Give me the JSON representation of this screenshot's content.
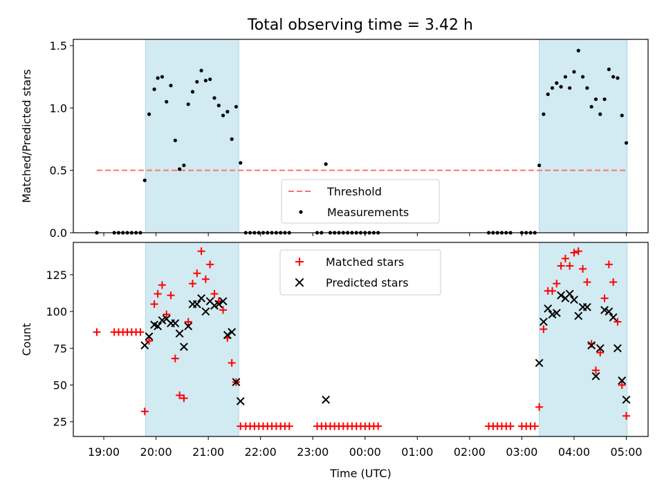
{
  "title": "Total observing time = 3.42 h",
  "colors": {
    "band": "#add8e6",
    "threshold": "#ff6f6f",
    "matched": "#ff0000",
    "predicted": "#000000",
    "measurement": "#000000"
  },
  "chart_data": [
    {
      "type": "scatter",
      "panel": "top",
      "xlabel": "",
      "ylabel": "Matched/Predicted stars",
      "ylim": [
        0,
        1.55
      ],
      "yticks": [
        0.0,
        0.5,
        1.0,
        1.5
      ],
      "ytick_labels": [
        "0.0",
        "0.5",
        "1.0",
        "1.5"
      ],
      "xticks": [
        "19:00",
        "20:00",
        "21:00",
        "22:00",
        "23:00",
        "00:00",
        "01:00",
        "02:00",
        "03:00",
        "04:00",
        "05:00"
      ],
      "show_xtick_labels": false,
      "shaded_regions": [
        [
          "19:48",
          "21:35"
        ],
        [
          "03:20",
          "05:01"
        ]
      ],
      "threshold": {
        "name": "Threshold",
        "value": 0.5,
        "x_range": [
          "18:52",
          "05:01"
        ]
      },
      "legend": {
        "placement": "lower-center",
        "entries": [
          "Threshold",
          "Measurements"
        ]
      },
      "series": [
        {
          "name": "Measurements",
          "marker": "dot",
          "points": [
            [
              "18:52",
              0.0
            ],
            [
              "19:12",
              0.0
            ],
            [
              "19:17",
              0.0
            ],
            [
              "19:22",
              0.0
            ],
            [
              "19:27",
              0.0
            ],
            [
              "19:32",
              0.0
            ],
            [
              "19:37",
              0.0
            ],
            [
              "19:42",
              0.0
            ],
            [
              "19:47",
              0.42
            ],
            [
              "19:52",
              0.95
            ],
            [
              "19:58",
              1.15
            ],
            [
              "20:02",
              1.24
            ],
            [
              "20:07",
              1.25
            ],
            [
              "20:12",
              1.05
            ],
            [
              "20:17",
              1.18
            ],
            [
              "20:22",
              0.74
            ],
            [
              "20:27",
              0.51
            ],
            [
              "20:32",
              0.54
            ],
            [
              "20:37",
              1.03
            ],
            [
              "20:42",
              1.13
            ],
            [
              "20:47",
              1.21
            ],
            [
              "20:52",
              1.3
            ],
            [
              "20:57",
              1.22
            ],
            [
              "21:02",
              1.23
            ],
            [
              "21:07",
              1.08
            ],
            [
              "21:12",
              1.02
            ],
            [
              "21:17",
              0.94
            ],
            [
              "21:22",
              0.97
            ],
            [
              "21:27",
              0.75
            ],
            [
              "21:32",
              1.01
            ],
            [
              "21:37",
              0.56
            ],
            [
              "21:43",
              0.0
            ],
            [
              "21:48",
              0.0
            ],
            [
              "21:53",
              0.0
            ],
            [
              "21:58",
              0.0
            ],
            [
              "22:03",
              0.0
            ],
            [
              "22:08",
              0.0
            ],
            [
              "22:13",
              0.0
            ],
            [
              "22:18",
              0.0
            ],
            [
              "22:23",
              0.0
            ],
            [
              "22:28",
              0.0
            ],
            [
              "22:33",
              0.0
            ],
            [
              "23:05",
              0.0
            ],
            [
              "23:10",
              0.0
            ],
            [
              "23:15",
              0.55
            ],
            [
              "23:20",
              0.0
            ],
            [
              "23:25",
              0.0
            ],
            [
              "23:30",
              0.0
            ],
            [
              "23:35",
              0.0
            ],
            [
              "23:40",
              0.0
            ],
            [
              "23:45",
              0.0
            ],
            [
              "23:50",
              0.0
            ],
            [
              "23:55",
              0.0
            ],
            [
              "00:00",
              0.0
            ],
            [
              "00:05",
              0.0
            ],
            [
              "00:10",
              0.0
            ],
            [
              "00:15",
              0.0
            ],
            [
              "02:22",
              0.0
            ],
            [
              "02:27",
              0.0
            ],
            [
              "02:32",
              0.0
            ],
            [
              "02:37",
              0.0
            ],
            [
              "02:42",
              0.0
            ],
            [
              "02:47",
              0.0
            ],
            [
              "03:00",
              0.0
            ],
            [
              "03:05",
              0.0
            ],
            [
              "03:10",
              0.0
            ],
            [
              "03:15",
              0.0
            ],
            [
              "03:20",
              0.54
            ],
            [
              "03:25",
              0.95
            ],
            [
              "03:30",
              1.11
            ],
            [
              "03:35",
              1.16
            ],
            [
              "03:40",
              1.2
            ],
            [
              "03:45",
              1.17
            ],
            [
              "03:50",
              1.25
            ],
            [
              "03:55",
              1.16
            ],
            [
              "04:00",
              1.29
            ],
            [
              "04:05",
              1.46
            ],
            [
              "04:10",
              1.25
            ],
            [
              "04:15",
              1.16
            ],
            [
              "04:20",
              1.01
            ],
            [
              "04:25",
              1.07
            ],
            [
              "04:30",
              0.95
            ],
            [
              "04:35",
              1.07
            ],
            [
              "04:40",
              1.31
            ],
            [
              "04:45",
              1.25
            ],
            [
              "04:50",
              1.24
            ],
            [
              "04:55",
              0.94
            ],
            [
              "05:00",
              0.72
            ]
          ]
        }
      ]
    },
    {
      "type": "scatter",
      "panel": "bottom",
      "xlabel": "Time (UTC)",
      "ylabel": "Count",
      "ylim": [
        15,
        147
      ],
      "yticks": [
        25,
        50,
        75,
        100,
        125
      ],
      "ytick_labels": [
        "25",
        "50",
        "75",
        "100",
        "125"
      ],
      "xticks": [
        "19:00",
        "20:00",
        "21:00",
        "22:00",
        "23:00",
        "00:00",
        "01:00",
        "02:00",
        "03:00",
        "04:00",
        "05:00"
      ],
      "show_xtick_labels": true,
      "shaded_regions": [
        [
          "19:48",
          "21:35"
        ],
        [
          "03:20",
          "05:01"
        ]
      ],
      "legend": {
        "placement": "top-center",
        "entries": [
          "Matched stars",
          "Predicted stars"
        ]
      },
      "series": [
        {
          "name": "Matched stars",
          "marker": "plus",
          "points": [
            [
              "18:52",
              86
            ],
            [
              "19:12",
              86
            ],
            [
              "19:17",
              86
            ],
            [
              "19:22",
              86
            ],
            [
              "19:27",
              86
            ],
            [
              "19:32",
              86
            ],
            [
              "19:37",
              86
            ],
            [
              "19:42",
              86
            ],
            [
              "19:47",
              32
            ],
            [
              "19:52",
              80
            ],
            [
              "19:58",
              105
            ],
            [
              "20:02",
              112
            ],
            [
              "20:07",
              118
            ],
            [
              "20:12",
              98
            ],
            [
              "20:17",
              111
            ],
            [
              "20:22",
              68
            ],
            [
              "20:27",
              43
            ],
            [
              "20:32",
              41
            ],
            [
              "20:37",
              93
            ],
            [
              "20:42",
              119
            ],
            [
              "20:47",
              126
            ],
            [
              "20:52",
              141
            ],
            [
              "20:57",
              122
            ],
            [
              "21:02",
              132
            ],
            [
              "21:07",
              112
            ],
            [
              "21:12",
              107
            ],
            [
              "21:17",
              101
            ],
            [
              "21:22",
              82
            ],
            [
              "21:27",
              65
            ],
            [
              "21:32",
              52
            ],
            [
              "21:37",
              22
            ],
            [
              "21:43",
              22
            ],
            [
              "21:48",
              22
            ],
            [
              "21:53",
              22
            ],
            [
              "21:58",
              22
            ],
            [
              "22:03",
              22
            ],
            [
              "22:08",
              22
            ],
            [
              "22:13",
              22
            ],
            [
              "22:18",
              22
            ],
            [
              "22:23",
              22
            ],
            [
              "22:28",
              22
            ],
            [
              "22:33",
              22
            ],
            [
              "23:05",
              22
            ],
            [
              "23:10",
              22
            ],
            [
              "23:15",
              22
            ],
            [
              "23:20",
              22
            ],
            [
              "23:25",
              22
            ],
            [
              "23:30",
              22
            ],
            [
              "23:35",
              22
            ],
            [
              "23:40",
              22
            ],
            [
              "23:45",
              22
            ],
            [
              "23:50",
              22
            ],
            [
              "23:55",
              22
            ],
            [
              "00:00",
              22
            ],
            [
              "00:05",
              22
            ],
            [
              "00:10",
              22
            ],
            [
              "00:15",
              22
            ],
            [
              "02:22",
              22
            ],
            [
              "02:27",
              22
            ],
            [
              "02:32",
              22
            ],
            [
              "02:37",
              22
            ],
            [
              "02:42",
              22
            ],
            [
              "02:47",
              22
            ],
            [
              "03:00",
              22
            ],
            [
              "03:05",
              22
            ],
            [
              "03:10",
              22
            ],
            [
              "03:15",
              22
            ],
            [
              "03:20",
              35
            ],
            [
              "03:25",
              88
            ],
            [
              "03:30",
              114
            ],
            [
              "03:35",
              114
            ],
            [
              "03:40",
              119
            ],
            [
              "03:45",
              131
            ],
            [
              "03:50",
              136
            ],
            [
              "03:55",
              131
            ],
            [
              "04:00",
              140
            ],
            [
              "04:05",
              141
            ],
            [
              "04:10",
              129
            ],
            [
              "04:15",
              120
            ],
            [
              "04:20",
              78
            ],
            [
              "04:25",
              60
            ],
            [
              "04:30",
              72
            ],
            [
              "04:35",
              109
            ],
            [
              "04:40",
              132
            ],
            [
              "04:45",
              120
            ],
            [
              "04:50",
              93
            ],
            [
              "04:55",
              50
            ],
            [
              "05:00",
              29
            ]
          ]
        },
        {
          "name": "Predicted stars",
          "marker": "x",
          "points": [
            [
              "19:47",
              77
            ],
            [
              "19:52",
              83
            ],
            [
              "19:58",
              91
            ],
            [
              "20:02",
              90
            ],
            [
              "20:07",
              94
            ],
            [
              "20:12",
              95
            ],
            [
              "20:17",
              92
            ],
            [
              "20:22",
              92
            ],
            [
              "20:27",
              85
            ],
            [
              "20:32",
              76
            ],
            [
              "20:37",
              90
            ],
            [
              "20:42",
              105
            ],
            [
              "20:47",
              105
            ],
            [
              "20:52",
              109
            ],
            [
              "20:57",
              100
            ],
            [
              "21:02",
              107
            ],
            [
              "21:07",
              104
            ],
            [
              "21:12",
              105
            ],
            [
              "21:17",
              107
            ],
            [
              "21:22",
              84
            ],
            [
              "21:27",
              86
            ],
            [
              "21:32",
              52
            ],
            [
              "21:37",
              39
            ],
            [
              "23:15",
              40
            ],
            [
              "03:20",
              65
            ],
            [
              "03:25",
              93
            ],
            [
              "03:30",
              102
            ],
            [
              "03:35",
              98
            ],
            [
              "03:40",
              99
            ],
            [
              "03:45",
              111
            ],
            [
              "03:50",
              109
            ],
            [
              "03:55",
              112
            ],
            [
              "04:00",
              108
            ],
            [
              "04:05",
              97
            ],
            [
              "04:10",
              103
            ],
            [
              "04:15",
              103
            ],
            [
              "04:20",
              77
            ],
            [
              "04:25",
              56
            ],
            [
              "04:30",
              75
            ],
            [
              "04:35",
              101
            ],
            [
              "04:40",
              100
            ],
            [
              "04:45",
              96
            ],
            [
              "04:50",
              75
            ],
            [
              "04:55",
              53
            ],
            [
              "05:00",
              40
            ]
          ]
        }
      ]
    }
  ]
}
